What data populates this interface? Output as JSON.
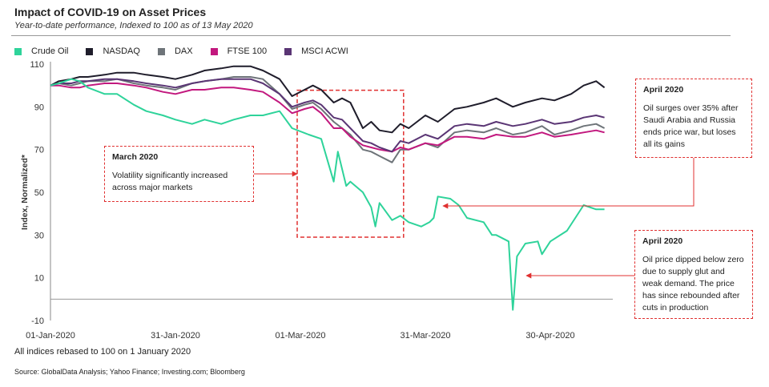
{
  "header": {
    "title": "Impact of COVID-19 on Asset Prices",
    "subtitle": "Year-to-date performance, Indexed to 100 as of 13 May 2020"
  },
  "footer": {
    "note": "All indices rebased to 100 on 1 January  2020",
    "source": "Source: GlobalData Analysis; Yahoo Finance; Investing.com; Bloomberg"
  },
  "callouts": [
    {
      "title": "March 2020",
      "text": "Volatility significantly increased across major markets"
    },
    {
      "title": "April 2020",
      "text": "Oil surges over 35%  after Saudi Arabia and Russia ends price war, but loses all its gains"
    },
    {
      "title": "April 2020",
      "text": "Oil price dipped below zero due to supply glut and weak demand. The price has since rebounded after cuts in production"
    }
  ],
  "chart_data": {
    "type": "line",
    "title": "Impact of COVID-19 on Asset Prices",
    "ylabel": "Index, Normalized*",
    "xlabel": "",
    "ylim": [
      -10,
      110
    ],
    "yticks": [
      -10,
      10,
      30,
      50,
      70,
      90,
      110
    ],
    "xlim": [
      "2020-01-01",
      "2020-05-15"
    ],
    "xticks": [
      {
        "date": "2020-01-01",
        "label": "01-Jan-2020"
      },
      {
        "date": "2020-01-31",
        "label": "31-Jan-2020"
      },
      {
        "date": "2020-03-01",
        "label": "01-Mar-2020"
      },
      {
        "date": "2020-03-31",
        "label": "31-Mar-2020"
      },
      {
        "date": "2020-04-30",
        "label": "30-Apr-2020"
      }
    ],
    "legend": "top-left",
    "grid": false,
    "highlight_region": [
      "2020-03-01",
      "2020-03-25"
    ],
    "series": [
      {
        "name": "Crude Oil",
        "color": "#2ed39a",
        "x": [
          "2020-01-01",
          "2020-01-03",
          "2020-01-06",
          "2020-01-08",
          "2020-01-10",
          "2020-01-14",
          "2020-01-17",
          "2020-01-21",
          "2020-01-24",
          "2020-01-28",
          "2020-01-31",
          "2020-02-04",
          "2020-02-07",
          "2020-02-11",
          "2020-02-14",
          "2020-02-18",
          "2020-02-21",
          "2020-02-25",
          "2020-02-28",
          "2020-03-03",
          "2020-03-06",
          "2020-03-09",
          "2020-03-10",
          "2020-03-12",
          "2020-03-13",
          "2020-03-16",
          "2020-03-18",
          "2020-03-19",
          "2020-03-20",
          "2020-03-23",
          "2020-03-25",
          "2020-03-27",
          "2020-03-30",
          "2020-04-01",
          "2020-04-02",
          "2020-04-03",
          "2020-04-06",
          "2020-04-08",
          "2020-04-10",
          "2020-04-14",
          "2020-04-16",
          "2020-04-17",
          "2020-04-20",
          "2020-04-21",
          "2020-04-22",
          "2020-04-24",
          "2020-04-27",
          "2020-04-28",
          "2020-04-30",
          "2020-05-04",
          "2020-05-06",
          "2020-05-08",
          "2020-05-11",
          "2020-05-13"
        ],
        "y": [
          100,
          101,
          103,
          102,
          99,
          96,
          96,
          91,
          88,
          86,
          84,
          82,
          84,
          82,
          84,
          86,
          86,
          88,
          80,
          77,
          75,
          55,
          69,
          53,
          55,
          50,
          43,
          34,
          45,
          37,
          39,
          36,
          34,
          36,
          38,
          48,
          47,
          44,
          38,
          36,
          30,
          30,
          27,
          -5,
          20,
          26,
          27,
          21,
          27,
          32,
          38,
          44,
          42,
          42
        ]
      },
      {
        "name": "NASDAQ",
        "color": "#1f1d2b",
        "x": [
          "2020-01-01",
          "2020-01-03",
          "2020-01-06",
          "2020-01-08",
          "2020-01-10",
          "2020-01-14",
          "2020-01-17",
          "2020-01-21",
          "2020-01-24",
          "2020-01-28",
          "2020-01-31",
          "2020-02-04",
          "2020-02-07",
          "2020-02-11",
          "2020-02-14",
          "2020-02-18",
          "2020-02-21",
          "2020-02-25",
          "2020-02-28",
          "2020-03-02",
          "2020-03-04",
          "2020-03-06",
          "2020-03-09",
          "2020-03-11",
          "2020-03-13",
          "2020-03-16",
          "2020-03-18",
          "2020-03-20",
          "2020-03-23",
          "2020-03-25",
          "2020-03-27",
          "2020-03-31",
          "2020-04-03",
          "2020-04-07",
          "2020-04-10",
          "2020-04-14",
          "2020-04-17",
          "2020-04-21",
          "2020-04-24",
          "2020-04-28",
          "2020-05-01",
          "2020-05-05",
          "2020-05-08",
          "2020-05-11",
          "2020-05-13"
        ],
        "y": [
          100,
          102,
          103,
          104,
          104,
          105,
          106,
          106,
          105,
          104,
          103,
          105,
          107,
          108,
          109,
          109,
          107,
          103,
          95,
          98,
          100,
          98,
          92,
          94,
          92,
          80,
          83,
          79,
          78,
          82,
          80,
          86,
          83,
          89,
          90,
          92,
          94,
          90,
          92,
          94,
          93,
          96,
          100,
          102,
          99
        ]
      },
      {
        "name": "DAX",
        "color": "#6e7479",
        "x": [
          "2020-01-01",
          "2020-01-03",
          "2020-01-06",
          "2020-01-08",
          "2020-01-10",
          "2020-01-14",
          "2020-01-17",
          "2020-01-21",
          "2020-01-24",
          "2020-01-28",
          "2020-01-31",
          "2020-02-04",
          "2020-02-07",
          "2020-02-11",
          "2020-02-14",
          "2020-02-18",
          "2020-02-21",
          "2020-02-25",
          "2020-02-28",
          "2020-03-02",
          "2020-03-04",
          "2020-03-06",
          "2020-03-09",
          "2020-03-11",
          "2020-03-13",
          "2020-03-16",
          "2020-03-18",
          "2020-03-20",
          "2020-03-23",
          "2020-03-25",
          "2020-03-27",
          "2020-03-31",
          "2020-04-03",
          "2020-04-07",
          "2020-04-10",
          "2020-04-14",
          "2020-04-17",
          "2020-04-21",
          "2020-04-24",
          "2020-04-28",
          "2020-05-01",
          "2020-05-05",
          "2020-05-08",
          "2020-05-11",
          "2020-05-13"
        ],
        "y": [
          100,
          101,
          100,
          101,
          102,
          102,
          103,
          101,
          100,
          99,
          98,
          101,
          102,
          103,
          104,
          104,
          103,
          96,
          89,
          91,
          92,
          89,
          83,
          80,
          77,
          70,
          69,
          67,
          64,
          70,
          70,
          73,
          71,
          78,
          79,
          78,
          80,
          77,
          78,
          81,
          77,
          79,
          81,
          82,
          80
        ]
      },
      {
        "name": "FTSE 100",
        "color": "#c2187e",
        "x": [
          "2020-01-01",
          "2020-01-03",
          "2020-01-06",
          "2020-01-08",
          "2020-01-10",
          "2020-01-14",
          "2020-01-17",
          "2020-01-21",
          "2020-01-24",
          "2020-01-28",
          "2020-01-31",
          "2020-02-04",
          "2020-02-07",
          "2020-02-11",
          "2020-02-14",
          "2020-02-18",
          "2020-02-21",
          "2020-02-25",
          "2020-02-28",
          "2020-03-02",
          "2020-03-04",
          "2020-03-06",
          "2020-03-09",
          "2020-03-11",
          "2020-03-13",
          "2020-03-16",
          "2020-03-18",
          "2020-03-20",
          "2020-03-23",
          "2020-03-25",
          "2020-03-27",
          "2020-03-31",
          "2020-04-03",
          "2020-04-07",
          "2020-04-10",
          "2020-04-14",
          "2020-04-17",
          "2020-04-21",
          "2020-04-24",
          "2020-04-28",
          "2020-05-01",
          "2020-05-05",
          "2020-05-08",
          "2020-05-11",
          "2020-05-13"
        ],
        "y": [
          100,
          100,
          99,
          99,
          100,
          101,
          101,
          100,
          99,
          97,
          96,
          98,
          98,
          99,
          99,
          98,
          97,
          92,
          87,
          89,
          90,
          87,
          80,
          80,
          76,
          72,
          71,
          70,
          69,
          71,
          70,
          73,
          72,
          76,
          76,
          75,
          77,
          76,
          76,
          78,
          76,
          77,
          78,
          79,
          78
        ]
      },
      {
        "name": "MSCI ACWI",
        "color": "#5a3574",
        "x": [
          "2020-01-01",
          "2020-01-03",
          "2020-01-06",
          "2020-01-08",
          "2020-01-10",
          "2020-01-14",
          "2020-01-17",
          "2020-01-21",
          "2020-01-24",
          "2020-01-28",
          "2020-01-31",
          "2020-02-04",
          "2020-02-07",
          "2020-02-11",
          "2020-02-14",
          "2020-02-18",
          "2020-02-21",
          "2020-02-25",
          "2020-02-28",
          "2020-03-02",
          "2020-03-04",
          "2020-03-06",
          "2020-03-09",
          "2020-03-11",
          "2020-03-13",
          "2020-03-16",
          "2020-03-18",
          "2020-03-20",
          "2020-03-23",
          "2020-03-25",
          "2020-03-27",
          "2020-03-31",
          "2020-04-03",
          "2020-04-07",
          "2020-04-10",
          "2020-04-14",
          "2020-04-17",
          "2020-04-21",
          "2020-04-24",
          "2020-04-28",
          "2020-05-01",
          "2020-05-05",
          "2020-05-08",
          "2020-05-11",
          "2020-05-13"
        ],
        "y": [
          100,
          101,
          101,
          102,
          102,
          103,
          103,
          102,
          101,
          100,
          99,
          101,
          102,
          103,
          103,
          103,
          101,
          96,
          90,
          92,
          93,
          91,
          85,
          84,
          80,
          74,
          73,
          71,
          69,
          74,
          73,
          77,
          75,
          81,
          82,
          81,
          83,
          81,
          82,
          84,
          82,
          83,
          85,
          86,
          85
        ]
      }
    ]
  }
}
